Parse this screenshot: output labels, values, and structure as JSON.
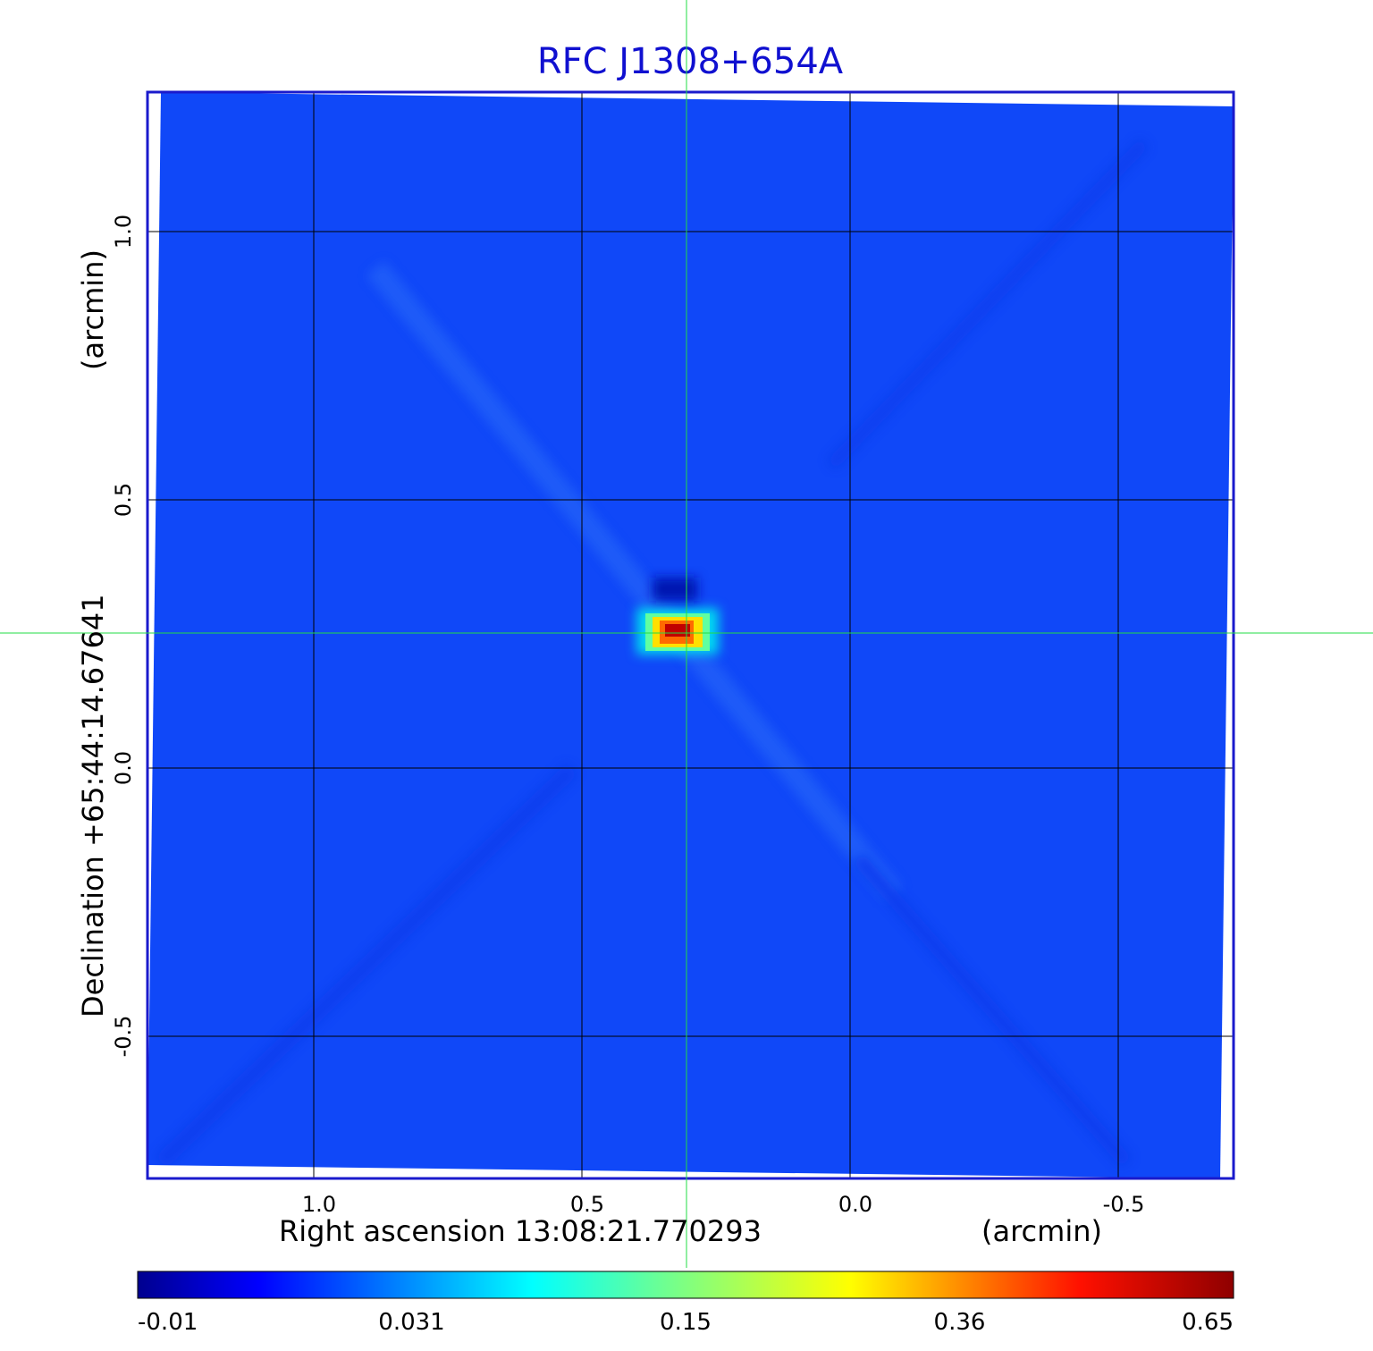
{
  "chart_data": {
    "type": "heatmap",
    "title": "RFC J1308+654A",
    "title_color": "#1010d0",
    "xlabel_left": "Right ascension  13:08:21.770293",
    "xlabel_right": "(arcmin)",
    "ylabel_left": "Declination  +65:44:14.67641",
    "ylabel_right": "(arcmin)",
    "x_ticks": [
      {
        "value": 1.0,
        "label": "1.0"
      },
      {
        "value": 0.5,
        "label": "0.5"
      },
      {
        "value": 0.0,
        "label": "0.0"
      },
      {
        "value": -0.5,
        "label": "-0.5"
      }
    ],
    "y_ticks": [
      {
        "value": 1.0,
        "label": "1.0"
      },
      {
        "value": 0.5,
        "label": "0.5"
      },
      {
        "value": 0.0,
        "label": "0.0"
      },
      {
        "value": -0.5,
        "label": "-0.5"
      }
    ],
    "xlim": [
      1.31,
      -0.715
    ],
    "ylim": [
      -0.765,
      1.26
    ],
    "x_reversed": true,
    "grid": true,
    "crosshair": {
      "x": 0.305,
      "y": 0.25
    },
    "source": {
      "x": 0.32,
      "y": 0.25,
      "peak": 0.65
    },
    "colorbar": {
      "tick_labels": [
        "-0.01",
        "0.031",
        "0.15",
        "0.36",
        "0.65"
      ],
      "colormap": "jet",
      "placement": "bottom"
    },
    "colors": {
      "background_field": "#1048f8",
      "frame": "#1a1acc",
      "grid": "#000000",
      "crosshair": "#22dd44"
    }
  }
}
